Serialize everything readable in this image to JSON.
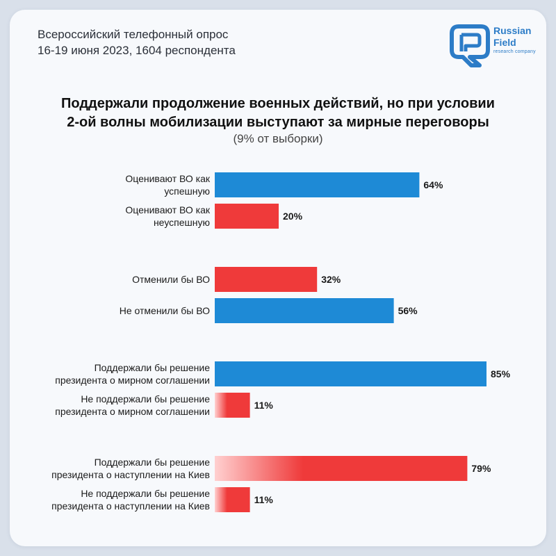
{
  "header": {
    "survey_line1": "Всероссийский телефонный опрос",
    "survey_line2": "16-19 июня 2023, 1604 респондента"
  },
  "logo": {
    "icon": "rf-logo-icon",
    "brand_line1": "Russian",
    "brand_line2": "Field",
    "brand_sub": "research company",
    "color": "#2c7cc7"
  },
  "chart_data": {
    "type": "bar",
    "orientation": "horizontal",
    "title_line1": "Поддержали продолжение военных действий, но при условии",
    "title_line2": "2-ой волны мобилизации выступают за мирные переговоры",
    "subtitle": "(9% от выборки)",
    "categories": [
      [
        "Оценивают ВО как",
        "успешную"
      ],
      [
        "Оценивают ВО как",
        "неуспешную"
      ],
      [
        "Отменили бы ВО"
      ],
      [
        "Не отменили бы ВО"
      ],
      [
        "Поддержали бы решение",
        "президента о мирном соглашении"
      ],
      [
        "Не поддержали бы решение",
        "президента о мирном соглашении"
      ],
      [
        "Поддержали бы решение",
        "президента о наступлении на Киев"
      ],
      [
        "Не поддержали бы решение",
        "президента о наступлении на Киев"
      ]
    ],
    "values": [
      64,
      20,
      32,
      56,
      85,
      11,
      79,
      11
    ],
    "value_labels": [
      "64%",
      "20%",
      "32%",
      "56%",
      "85%",
      "11%",
      "79%",
      "11%"
    ],
    "bar_colors": [
      "blue",
      "red",
      "red",
      "blue",
      "blue",
      "red",
      "red",
      "red"
    ],
    "gradient": [
      false,
      false,
      false,
      false,
      false,
      true,
      true,
      true
    ],
    "groups": [
      [
        0,
        1
      ],
      [
        2,
        3
      ],
      [
        4,
        5
      ],
      [
        6,
        7
      ]
    ],
    "xlim": [
      0,
      100
    ],
    "colors": {
      "blue": "#1e8ad6",
      "red": "#ef3a3a",
      "red_light": "#ffd0d0"
    }
  }
}
